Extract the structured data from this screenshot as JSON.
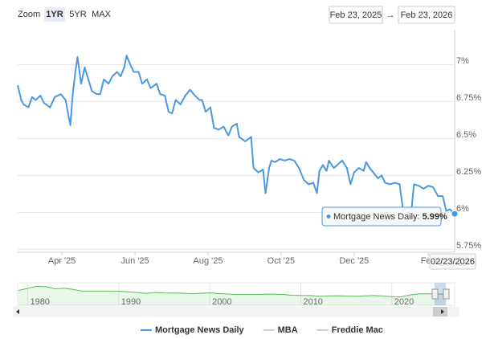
{
  "chart_data": {
    "type": "line",
    "zoom_label": "Zoom",
    "range_buttons": [
      "1YR",
      "5YR",
      "MAX"
    ],
    "selected_range": "1YR",
    "range_from": "Feb 23, 2025",
    "range_arrow": "→",
    "range_to": "Feb 23, 2026",
    "x": [
      "2025-02-23",
      "2025-02-26",
      "2025-02-28",
      "2025-03-04",
      "2025-03-07",
      "2025-03-10",
      "2025-03-14",
      "2025-03-17",
      "2025-03-22",
      "2025-03-26",
      "2025-03-31",
      "2025-04-04",
      "2025-04-08",
      "2025-04-10",
      "2025-04-12",
      "2025-04-14",
      "2025-04-17",
      "2025-04-20",
      "2025-04-23",
      "2025-04-26",
      "2025-04-30",
      "2025-05-03",
      "2025-05-06",
      "2025-05-10",
      "2025-05-13",
      "2025-05-17",
      "2025-05-20",
      "2025-05-23",
      "2025-05-25",
      "2025-05-28",
      "2025-05-31",
      "2025-06-04",
      "2025-06-07",
      "2025-06-11",
      "2025-06-14",
      "2025-06-19",
      "2025-06-22",
      "2025-06-26",
      "2025-06-29",
      "2025-07-02",
      "2025-07-05",
      "2025-07-09",
      "2025-07-13",
      "2025-07-17",
      "2025-07-21",
      "2025-07-25",
      "2025-07-27",
      "2025-07-30",
      "2025-08-03",
      "2025-08-06",
      "2025-08-10",
      "2025-08-14",
      "2025-08-18",
      "2025-08-21",
      "2025-08-25",
      "2025-08-27",
      "2025-09-01",
      "2025-09-06",
      "2025-09-08",
      "2025-09-12",
      "2025-09-16",
      "2025-09-18",
      "2025-09-21",
      "2025-09-23",
      "2025-09-26",
      "2025-09-30",
      "2025-10-04",
      "2025-10-08",
      "2025-10-12",
      "2025-10-16",
      "2025-10-20",
      "2025-10-24",
      "2025-10-28",
      "2025-10-31",
      "2025-11-02",
      "2025-11-05",
      "2025-11-08",
      "2025-11-10",
      "2025-11-14",
      "2025-11-17",
      "2025-11-21",
      "2025-11-25",
      "2025-11-28",
      "2025-12-01",
      "2025-12-05",
      "2025-12-09",
      "2025-12-11",
      "2025-12-14",
      "2025-12-17",
      "2025-12-21",
      "2025-12-24",
      "2025-12-27",
      "2025-12-31",
      "2026-01-04",
      "2026-01-08",
      "2026-01-11",
      "2026-01-14",
      "2026-01-18",
      "2026-01-20",
      "2026-01-24",
      "2026-01-28",
      "2026-02-01",
      "2026-02-05",
      "2026-02-09",
      "2026-02-13",
      "2026-02-16",
      "2026-02-19",
      "2026-02-23"
    ],
    "series": [
      {
        "name": "Mortgage News Daily",
        "color": "#4a98e0",
        "visible": true,
        "values": [
          6.86,
          6.76,
          6.73,
          6.71,
          6.78,
          6.76,
          6.79,
          6.74,
          6.71,
          6.78,
          6.8,
          6.76,
          6.59,
          6.8,
          6.94,
          7.05,
          6.87,
          6.98,
          6.9,
          6.82,
          6.8,
          6.8,
          6.9,
          6.87,
          6.92,
          6.95,
          6.92,
          6.98,
          7.06,
          7.0,
          6.95,
          6.95,
          6.87,
          6.9,
          6.84,
          6.87,
          6.8,
          6.79,
          6.68,
          6.67,
          6.76,
          6.73,
          6.79,
          6.83,
          6.79,
          6.76,
          6.76,
          6.68,
          6.71,
          6.57,
          6.56,
          6.58,
          6.52,
          6.58,
          6.6,
          6.51,
          6.48,
          6.51,
          6.3,
          6.27,
          6.29,
          6.13,
          6.3,
          6.35,
          6.34,
          6.36,
          6.35,
          6.36,
          6.35,
          6.3,
          6.22,
          6.19,
          6.2,
          6.13,
          6.28,
          6.32,
          6.28,
          6.35,
          6.3,
          6.32,
          6.35,
          6.3,
          6.19,
          6.27,
          6.3,
          6.28,
          6.34,
          6.3,
          6.27,
          6.23,
          6.25,
          6.2,
          6.19,
          6.2,
          6.19,
          6.01,
          6.03,
          6.02,
          6.19,
          6.18,
          6.16,
          6.18,
          6.17,
          6.11,
          6.11,
          6.01,
          6.02,
          5.99
        ]
      },
      {
        "name": "MBA",
        "color": "#cccccc",
        "visible": false
      },
      {
        "name": "Freddie Mac",
        "color": "#cccccc",
        "visible": false
      }
    ],
    "xlim": [
      "2025-02-23",
      "2026-02-23"
    ],
    "xticks": [
      {
        "value": "2025-04-01",
        "label": "Apr '25"
      },
      {
        "value": "2025-06-01",
        "label": "Jun '25"
      },
      {
        "value": "2025-08-01",
        "label": "Aug '25"
      },
      {
        "value": "2025-10-01",
        "label": "Oct '25"
      },
      {
        "value": "2025-12-01",
        "label": "Dec '25"
      },
      {
        "value": "2026-02-01",
        "label": "Feb"
      }
    ],
    "ylim": [
      5.73,
      7.23
    ],
    "yticks": [
      {
        "value": 5.75,
        "label": "5.75%"
      },
      {
        "value": 6,
        "label": "6%"
      },
      {
        "value": 6.25,
        "label": "6.25%"
      },
      {
        "value": 6.5,
        "label": "6.5%"
      },
      {
        "value": 6.75,
        "label": "6.75%"
      },
      {
        "value": 7,
        "label": "7%"
      }
    ],
    "grid": true,
    "tooltip": {
      "label": "Mortgage News Daily:",
      "value_label": "5.99%",
      "date_label": "02/23/2026"
    },
    "navigator": {
      "color": "#5cb85c",
      "x": [
        1979,
        1980,
        1981,
        1982,
        1983,
        1984,
        1985,
        1986,
        1987,
        1988,
        1989,
        1990,
        1991,
        1992,
        1993,
        1994,
        1995,
        1996,
        1997,
        1998,
        1999,
        2000,
        2001,
        2002,
        2003,
        2004,
        2005,
        2006,
        2007,
        2008,
        2009,
        2010,
        2011,
        2012,
        2013,
        2014,
        2015,
        2016,
        2017,
        2018,
        2019,
        2020,
        2021,
        2022,
        2023,
        2024,
        2025,
        2026
      ],
      "values": [
        11.2,
        13.7,
        16.6,
        16.0,
        13.2,
        13.9,
        12.4,
        10.2,
        10.2,
        10.3,
        10.3,
        10.1,
        9.3,
        8.4,
        7.3,
        8.4,
        7.9,
        7.8,
        7.6,
        6.9,
        7.4,
        8.1,
        7.0,
        6.5,
        5.8,
        5.8,
        5.9,
        6.4,
        6.3,
        6.0,
        5.0,
        4.7,
        4.5,
        3.7,
        4.0,
        4.2,
        3.9,
        3.7,
        4.0,
        4.5,
        3.9,
        3.1,
        3.0,
        5.3,
        6.8,
        6.7,
        6.6,
        6.0
      ],
      "xlim": [
        1978.9,
        2026.9
      ],
      "ylim": [
        -8,
        21
      ],
      "xticks": [
        1980,
        1990,
        2000,
        2010,
        2020
      ]
    }
  }
}
